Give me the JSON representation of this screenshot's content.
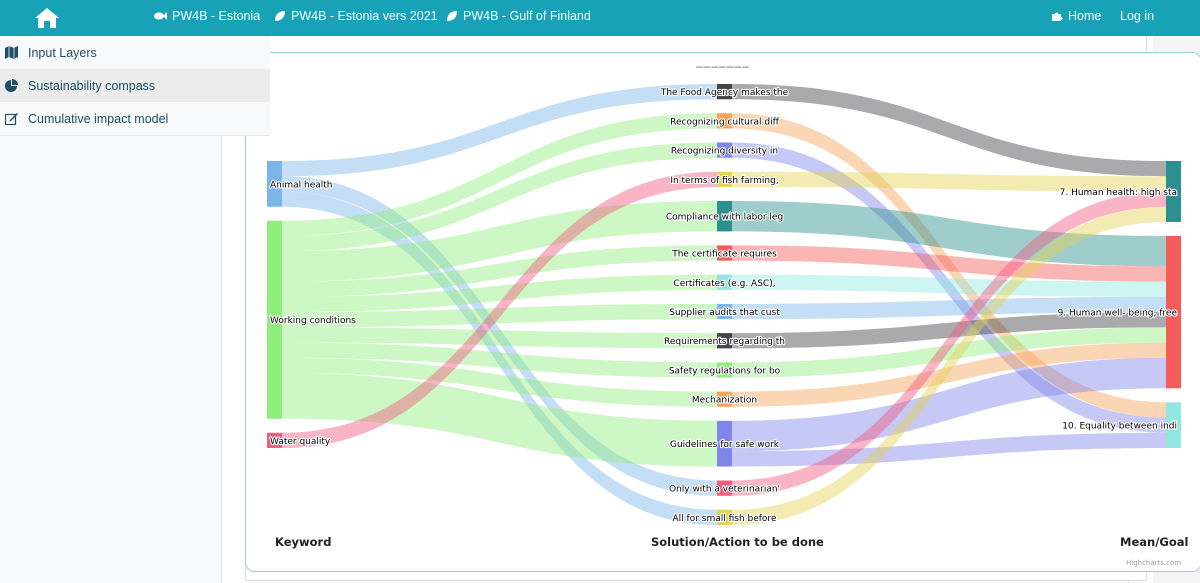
{
  "nav": {
    "items": [
      {
        "label": "PW4B - Estonia",
        "icon": "fish-icon"
      },
      {
        "label": "PW4B - Estonia vers 2021",
        "icon": "leaf-icon"
      },
      {
        "label": "PW4B - Gulf of Finland",
        "icon": "leaf-icon"
      }
    ],
    "home": "Home",
    "login": "Log in"
  },
  "sidebar": {
    "items": [
      {
        "label": "Input Layers",
        "icon": "map-icon"
      },
      {
        "label": "Sustainability compass",
        "icon": "pie-chart-icon"
      },
      {
        "label": "Cumulative impact model",
        "icon": "edit-icon"
      }
    ]
  },
  "chart": {
    "handle": "‒‒‒‒‒‒‒",
    "credit": "Highcharts.com"
  },
  "chart_data": {
    "type": "sankey",
    "columns": [
      "Keyword",
      "Solution/Action to be done",
      "Mean/Goal"
    ],
    "nodes": {
      "keywords": [
        "Animal health",
        "Working conditions",
        "Water quality"
      ],
      "actions": [
        "The Food Agency makes the",
        "Recognizing cultural diff",
        "Recognizing diversity in",
        "In terms of fish farming,",
        "Compliance with labor leg",
        "The certificate requires",
        "Certificates (e.g. ASC),",
        "Supplier audits that cust",
        "Requirements regarding th",
        "Safety regulations for bo",
        "Mechanization",
        "Guidelines for safe work",
        "Only with a veterinarian'",
        "All for small fish before"
      ],
      "goals": [
        "7. Human health: high sta",
        "9. Human well- being, free",
        "10. Equality between indi"
      ]
    },
    "colors": {
      "Animal health": "#7cb5ec",
      "Working conditions": "#90ed7d",
      "Water quality": "#f15c80",
      "The Food Agency makes the": "#434348",
      "Recognizing cultural diff": "#f7a35c",
      "Recognizing diversity in": "#8085e9",
      "In terms of fish farming,": "#e4d354",
      "Compliance with labor leg": "#2b908f",
      "The certificate requires": "#f45b5b",
      "Certificates (e.g. ASC),": "#91e8e1",
      "Supplier audits that cust": "#7cb5ec",
      "Requirements regarding th": "#434348",
      "Safety regulations for bo": "#90ed7d",
      "Mechanization": "#f7a35c",
      "Guidelines for safe work": "#8085e9",
      "Only with a veterinarian'": "#f15c80",
      "All for small fish before": "#e4d354",
      "7. Human health: high sta": "#2b908f",
      "9. Human well- being, free": "#f45b5b",
      "10. Equality between indi": "#91e8e1"
    },
    "links": [
      {
        "from": "Animal health",
        "to": "The Food Agency makes the",
        "weight": 1
      },
      {
        "from": "Animal health",
        "to": "Only with a veterinarian'",
        "weight": 1
      },
      {
        "from": "Animal health",
        "to": "All for small fish before",
        "weight": 1
      },
      {
        "from": "Working conditions",
        "to": "Recognizing cultural diff",
        "weight": 1
      },
      {
        "from": "Working conditions",
        "to": "Recognizing diversity in",
        "weight": 1
      },
      {
        "from": "Working conditions",
        "to": "Compliance with labor leg",
        "weight": 2
      },
      {
        "from": "Working conditions",
        "to": "The certificate requires",
        "weight": 1
      },
      {
        "from": "Working conditions",
        "to": "Certificates (e.g. ASC),",
        "weight": 1
      },
      {
        "from": "Working conditions",
        "to": "Supplier audits that cust",
        "weight": 1
      },
      {
        "from": "Working conditions",
        "to": "Requirements regarding th",
        "weight": 1
      },
      {
        "from": "Working conditions",
        "to": "Safety regulations for bo",
        "weight": 1
      },
      {
        "from": "Working conditions",
        "to": "Mechanization",
        "weight": 1
      },
      {
        "from": "Working conditions",
        "to": "Guidelines for safe work",
        "weight": 3
      },
      {
        "from": "Water quality",
        "to": "In terms of fish farming,",
        "weight": 1
      },
      {
        "from": "The Food Agency makes the",
        "to": "7. Human health: high sta",
        "weight": 1
      },
      {
        "from": "Recognizing cultural diff",
        "to": "10. Equality between indi",
        "weight": 1
      },
      {
        "from": "Recognizing diversity in",
        "to": "10. Equality between indi",
        "weight": 1
      },
      {
        "from": "In terms of fish farming,",
        "to": "7. Human health: high sta",
        "weight": 1
      },
      {
        "from": "Compliance with labor leg",
        "to": "9. Human well- being, free",
        "weight": 2
      },
      {
        "from": "The certificate requires",
        "to": "9. Human well- being, free",
        "weight": 1
      },
      {
        "from": "Certificates (e.g. ASC),",
        "to": "9. Human well- being, free",
        "weight": 1
      },
      {
        "from": "Supplier audits that cust",
        "to": "9. Human well- being, free",
        "weight": 1
      },
      {
        "from": "Requirements regarding th",
        "to": "9. Human well- being, free",
        "weight": 1
      },
      {
        "from": "Safety regulations for bo",
        "to": "9. Human well- being, free",
        "weight": 1
      },
      {
        "from": "Mechanization",
        "to": "9. Human well- being, free",
        "weight": 1
      },
      {
        "from": "Guidelines for safe work",
        "to": "9. Human well- being, free",
        "weight": 2
      },
      {
        "from": "Guidelines for safe work",
        "to": "10. Equality between indi",
        "weight": 1
      },
      {
        "from": "Only with a veterinarian'",
        "to": "7. Human health: high sta",
        "weight": 1
      },
      {
        "from": "All for small fish before",
        "to": "7. Human health: high sta",
        "weight": 1
      }
    ]
  }
}
